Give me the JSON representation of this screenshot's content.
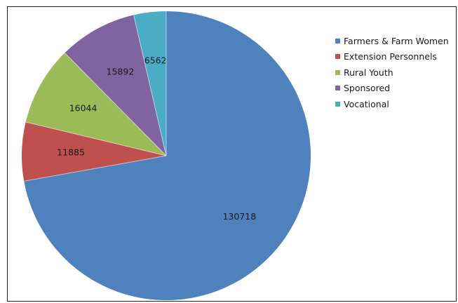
{
  "chart_data": {
    "type": "pie",
    "title": "",
    "legend_position": "top-right",
    "start_angle_deg": 0,
    "direction": "clockwise",
    "series": [
      {
        "name": "Farmers & Farm Women",
        "value": 130718,
        "label": "130718",
        "color": "#4F81BD"
      },
      {
        "name": "Extension Personnels",
        "value": 11885,
        "label": "11885",
        "color": "#C0504D"
      },
      {
        "name": "Rural Youth",
        "value": 16044,
        "label": "16044",
        "color": "#9BBB59"
      },
      {
        "name": "Sponsored",
        "value": 15892,
        "label": "15892",
        "color": "#8064A2"
      },
      {
        "name": "Vocational",
        "value": 6562,
        "label": "6562",
        "color": "#4BACC6"
      }
    ]
  }
}
